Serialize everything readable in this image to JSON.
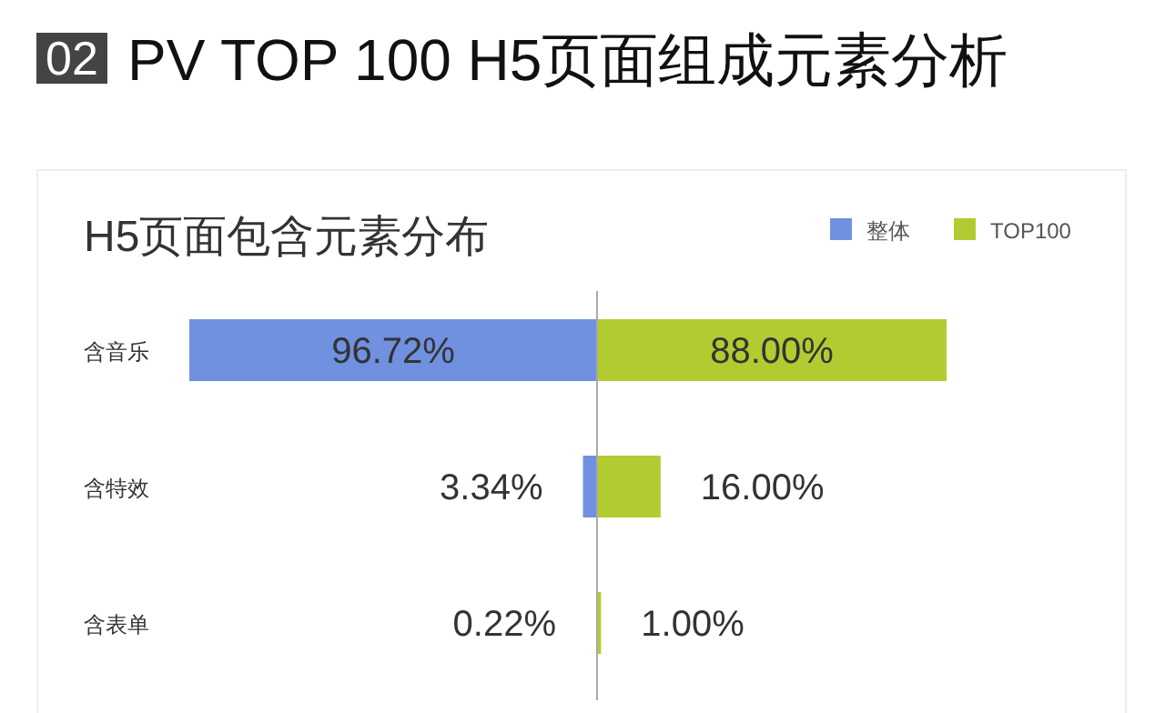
{
  "chart_data": [
    {
      "type": "bar",
      "orientation": "horizontal",
      "title": "PV TOP 100 H5页面组成元素分析",
      "subtitle": "H5页面包含元素分布",
      "annotations": [
        "02"
      ],
      "categories": [
        "含音乐",
        "含特效",
        "含表单"
      ],
      "tick_labels": "y",
      "xlim": [
        96.72,
        0
      ],
      "legend": "top right",
      "series": [
        {
          "name": "整体",
          "color": "#7090e0",
          "values": [
            96.72,
            3.34,
            0.22
          ],
          "value_labels": [
            "96.72%",
            "3.34%",
            "0.22%"
          ]
        }
      ]
    },
    {
      "type": "bar",
      "orientation": "horizontal",
      "categories": [
        null,
        null,
        null
      ],
      "tick_labels": false,
      "xlim": [
        0,
        88
      ],
      "legend": "top right",
      "series": [
        {
          "name": "TOP100",
          "color": "#b2cb30",
          "values": [
            88.0,
            16.0,
            1.0
          ],
          "value_labels": [
            "88.00%",
            "16.00%",
            "1.00%"
          ]
        }
      ]
    }
  ]
}
